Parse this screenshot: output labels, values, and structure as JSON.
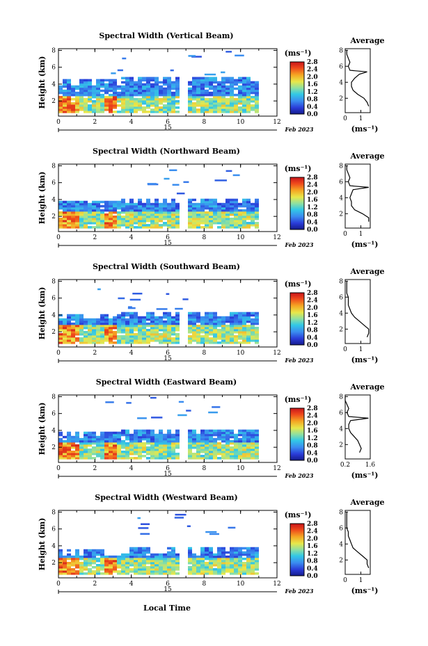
{
  "figure": {
    "xlabel": "Local Time",
    "date_label": "Feb 2023",
    "day_label": "15",
    "cbar_unit": "(ms⁻¹)",
    "avg_title": "Average",
    "avg_unit": "(ms⁻¹)",
    "height_label": "Height (km)"
  },
  "chart_data": [
    {
      "type": "heatmap",
      "title": "Spectral Width (Vertical Beam)",
      "ylabel": "Height (km)",
      "xlim": [
        0,
        12
      ],
      "ylim": [
        0.2,
        8.2
      ],
      "xticks": [
        0,
        2,
        4,
        6,
        8,
        10,
        12
      ],
      "yticks": [
        2,
        4,
        6,
        8
      ],
      "colorbar": {
        "min": 0.0,
        "max": 2.8,
        "ticks": [
          "0.0",
          "0.4",
          "0.8",
          "1.2",
          "1.6",
          "2.0",
          "2.4",
          "2.8"
        ]
      },
      "echo_top_km": 4.4,
      "strong_top_km": 2.4,
      "avg_profile": {
        "title": "Average",
        "xlim": [
          0,
          1.6
        ],
        "xticks": [
          0,
          1
        ],
        "xticklabels": [
          "0",
          "1"
        ],
        "yticks": [
          2,
          4,
          6,
          8
        ],
        "heights": [
          1.0,
          1.5,
          2.0,
          2.5,
          3.0,
          3.5,
          4.0,
          4.5,
          5.0,
          5.3,
          5.5,
          6.0,
          6.5,
          7.0,
          7.5,
          8.0
        ],
        "values": [
          1.5,
          1.4,
          1.2,
          0.8,
          0.5,
          0.4,
          0.4,
          0.6,
          0.9,
          1.4,
          0.3,
          0.2,
          0.3,
          0.2,
          0.1,
          0.1
        ]
      }
    },
    {
      "type": "heatmap",
      "title": "Spectral Width (Northward Beam)",
      "ylabel": "Height (km)",
      "xlim": [
        0,
        12
      ],
      "ylim": [
        0.2,
        8.2
      ],
      "xticks": [
        0,
        2,
        4,
        6,
        8,
        10,
        12
      ],
      "yticks": [
        2,
        4,
        6,
        8
      ],
      "colorbar": {
        "min": 0.0,
        "max": 2.8,
        "ticks": [
          "0.0",
          "0.4",
          "0.8",
          "1.2",
          "1.6",
          "2.0",
          "2.4",
          "2.8"
        ]
      },
      "echo_top_km": 3.8,
      "strong_top_km": 2.4,
      "avg_profile": {
        "title": "Average",
        "xlim": [
          0,
          1.6
        ],
        "xticks": [
          0,
          1
        ],
        "xticklabels": [
          "0",
          "1"
        ],
        "yticks": [
          2,
          4,
          6,
          8
        ],
        "heights": [
          1.0,
          1.5,
          2.0,
          2.5,
          3.0,
          3.5,
          4.0,
          4.5,
          5.0,
          5.3,
          5.5,
          6.0,
          6.5,
          7.0,
          7.5,
          8.0
        ],
        "values": [
          1.5,
          1.5,
          1.1,
          0.6,
          0.4,
          0.4,
          0.3,
          0.4,
          0.5,
          1.5,
          0.3,
          0.2,
          0.3,
          0.2,
          0.1,
          0.1
        ]
      }
    },
    {
      "type": "heatmap",
      "title": "Spectral Width (Southward Beam)",
      "ylabel": "Height (km)",
      "xlim": [
        0,
        12
      ],
      "ylim": [
        0.2,
        8.2
      ],
      "xticks": [
        0,
        2,
        4,
        6,
        8,
        10,
        12
      ],
      "yticks": [
        2,
        4,
        6,
        8
      ],
      "colorbar": {
        "min": 0.0,
        "max": 2.8,
        "ticks": [
          "0.0",
          "0.4",
          "0.8",
          "1.2",
          "1.6",
          "2.0",
          "2.4",
          "2.8"
        ]
      },
      "echo_top_km": 4.0,
      "strong_top_km": 2.8,
      "avg_profile": {
        "title": "Average",
        "xlim": [
          0,
          1.6
        ],
        "xticks": [
          0,
          1
        ],
        "xticklabels": [
          "0",
          "1"
        ],
        "yticks": [
          2,
          4,
          6,
          8
        ],
        "heights": [
          1.0,
          1.5,
          2.0,
          2.5,
          3.0,
          3.5,
          4.0,
          4.5,
          5.0,
          5.5,
          6.0,
          6.5,
          7.0,
          7.5,
          8.0
        ],
        "values": [
          1.4,
          1.5,
          1.5,
          1.2,
          0.9,
          0.6,
          0.4,
          0.3,
          0.2,
          0.2,
          0.2,
          0.1,
          0.1,
          0.1,
          0.1
        ]
      }
    },
    {
      "type": "heatmap",
      "title": "Spectral Width (Eastward Beam)",
      "ylabel": "Height (km)",
      "xlim": [
        0,
        12
      ],
      "ylim": [
        0.2,
        8.2
      ],
      "xticks": [
        0,
        2,
        4,
        6,
        8,
        10,
        12
      ],
      "yticks": [
        2,
        4,
        6,
        8
      ],
      "colorbar": {
        "min": 0.0,
        "max": 2.8,
        "ticks": [
          "0.0",
          "0.4",
          "0.8",
          "1.2",
          "1.6",
          "2.0",
          "2.4",
          "2.8"
        ]
      },
      "echo_top_km": 3.8,
      "strong_top_km": 2.6,
      "avg_profile": {
        "title": "Average",
        "xlim": [
          0.2,
          1.6
        ],
        "xticks": [
          0.2,
          1.6
        ],
        "xticklabels": [
          "0.2",
          "1.6"
        ],
        "yticks": [
          2,
          4,
          6,
          8
        ],
        "heights": [
          1.0,
          1.5,
          2.0,
          2.5,
          3.0,
          3.5,
          4.0,
          4.5,
          5.0,
          5.3,
          5.5,
          6.0,
          6.5,
          7.0,
          7.5,
          8.0
        ],
        "values": [
          1.0,
          1.1,
          1.0,
          0.9,
          0.7,
          0.5,
          0.4,
          0.4,
          0.5,
          1.5,
          0.4,
          0.3,
          0.4,
          0.3,
          0.2,
          0.2
        ]
      }
    },
    {
      "type": "heatmap",
      "title": "Spectral Width (Westward Beam)",
      "ylabel": "Height (km)",
      "xlim": [
        0,
        12
      ],
      "ylim": [
        0.2,
        8.2
      ],
      "xticks": [
        0,
        2,
        4,
        6,
        8,
        10,
        12
      ],
      "yticks": [
        2,
        4,
        6,
        8
      ],
      "colorbar": {
        "min": 0.0,
        "max": 2.8,
        "ticks": [
          "0.0",
          "0.4",
          "0.8",
          "1.2",
          "1.6",
          "2.0",
          "2.4",
          "2.8"
        ]
      },
      "echo_top_km": 3.4,
      "strong_top_km": 2.4,
      "avg_profile": {
        "title": "Average",
        "xlim": [
          0,
          1.6
        ],
        "xticks": [
          0,
          1
        ],
        "xticklabels": [
          "0",
          "1"
        ],
        "yticks": [
          2,
          4,
          6,
          8
        ],
        "heights": [
          1.0,
          1.5,
          2.0,
          2.5,
          3.0,
          3.5,
          4.0,
          4.5,
          5.0,
          5.5,
          6.0,
          6.5,
          7.0,
          7.5,
          8.0
        ],
        "values": [
          1.5,
          1.4,
          1.4,
          1.1,
          0.8,
          0.5,
          0.4,
          0.3,
          0.2,
          0.2,
          0.1,
          0.1,
          0.1,
          0.1,
          0.1
        ]
      }
    }
  ]
}
